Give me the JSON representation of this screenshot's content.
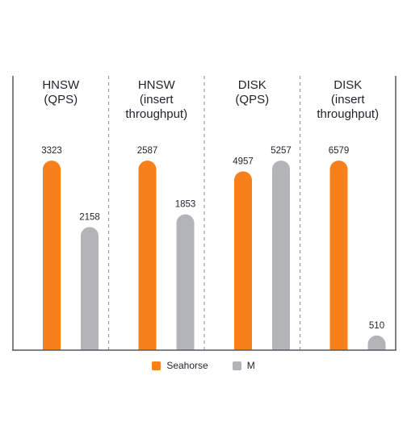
{
  "chart_data": {
    "type": "bar",
    "panels": [
      {
        "title_lines": [
          "HNSW",
          "(QPS)"
        ],
        "values": [
          3323,
          2158
        ],
        "labels": [
          "3323",
          "2158"
        ]
      },
      {
        "title_lines": [
          "HNSW",
          "(insert",
          "throughput)"
        ],
        "values": [
          2587,
          1853
        ],
        "labels": [
          "2587",
          "1853"
        ]
      },
      {
        "title_lines": [
          "DISK",
          "(QPS)"
        ],
        "values": [
          4957,
          5257
        ],
        "labels": [
          "4957",
          "5257"
        ]
      },
      {
        "title_lines": [
          "DISK",
          "(insert",
          "throughput)"
        ],
        "values": [
          6579,
          510
        ],
        "labels": [
          "6579",
          "510"
        ]
      }
    ],
    "series": [
      {
        "name": "Seahorse",
        "color": "#f8801b"
      },
      {
        "name": "M",
        "color": "#b3b4b8"
      }
    ],
    "legend_position": "bottom-center",
    "grid": false
  }
}
